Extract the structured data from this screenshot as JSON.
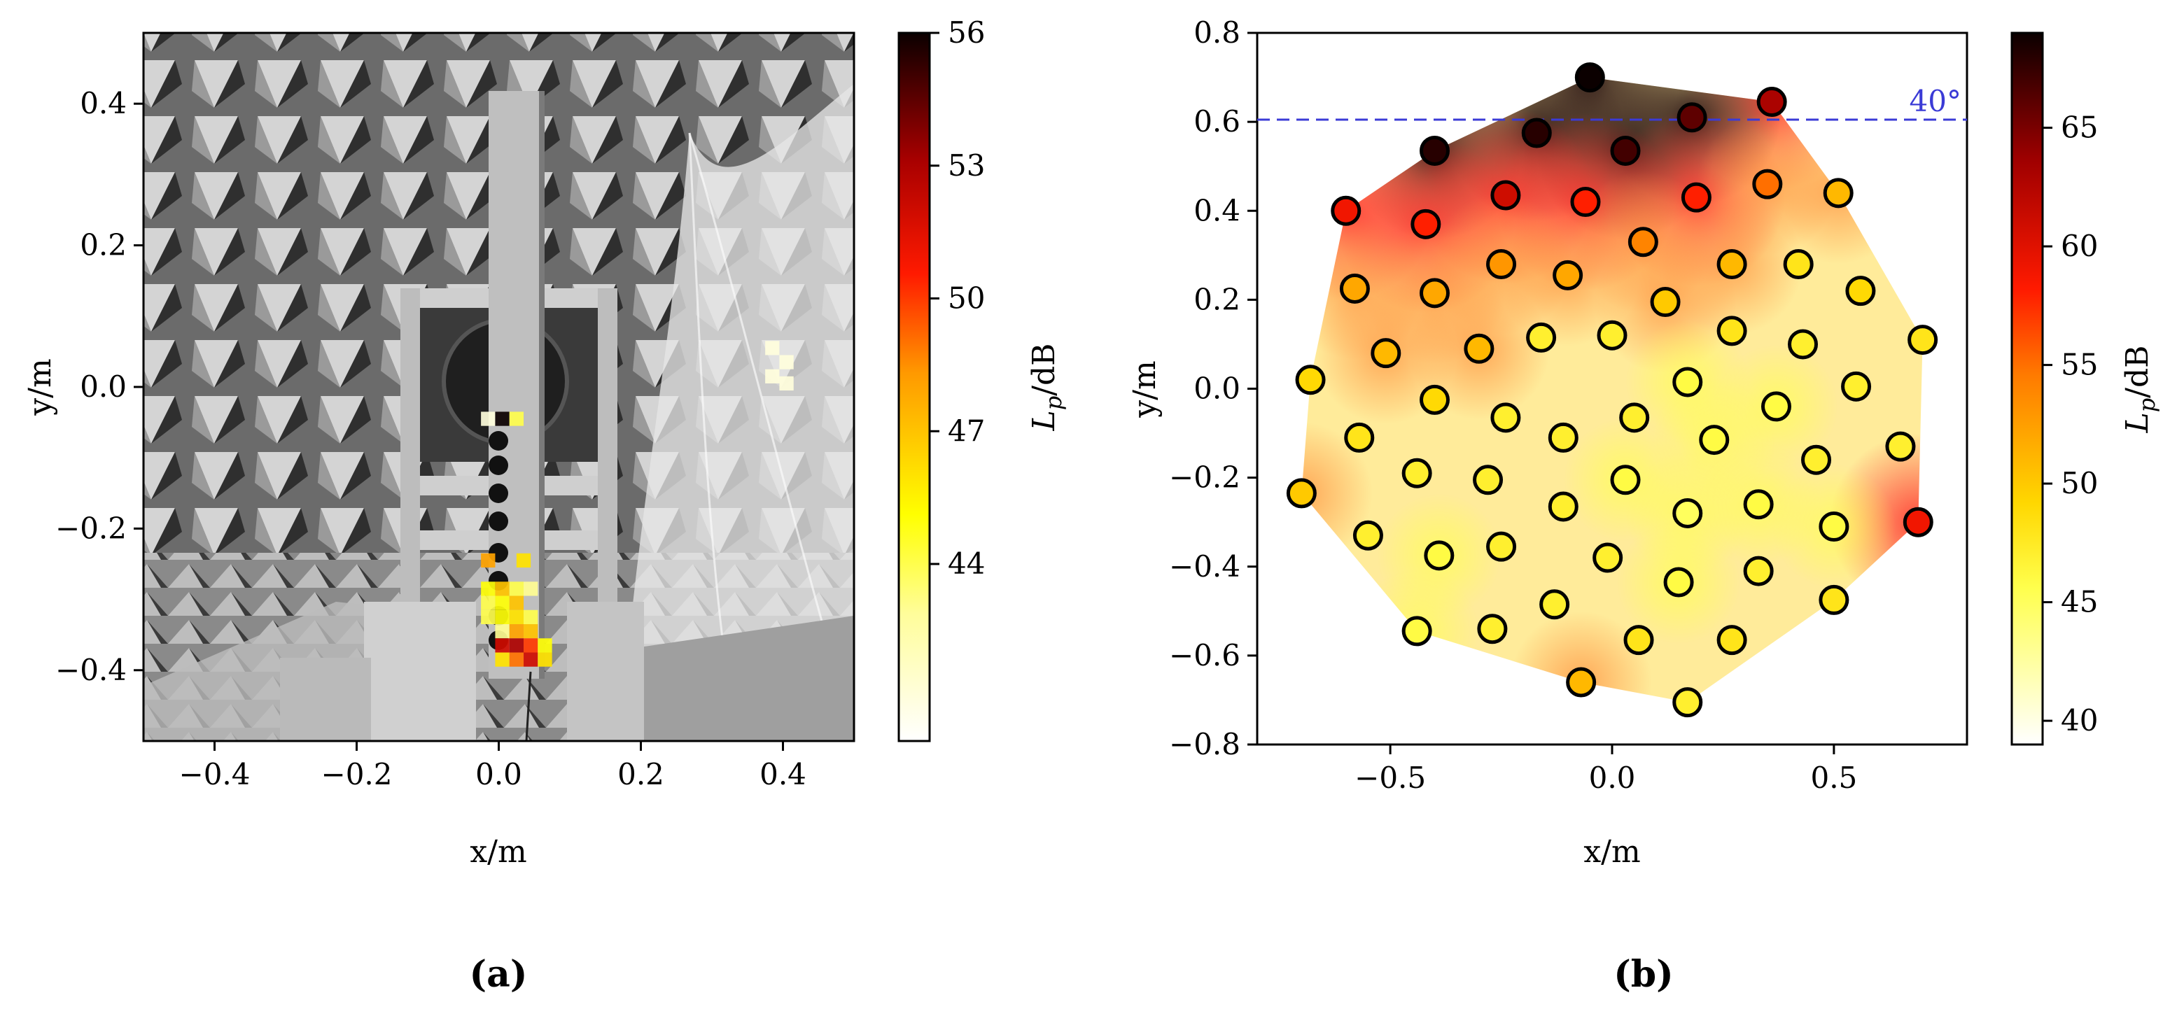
{
  "panels": [
    {
      "caption": "(a)",
      "chart_data": {
        "type": "heatmap",
        "background": "grayscale photograph of array (anechoic chamber)",
        "xlabel": "x/m",
        "ylabel": "y/m",
        "xlim": [
          -0.5,
          0.5
        ],
        "ylim": [
          -0.5,
          0.5
        ],
        "xticks": [
          -0.4,
          -0.2,
          0.0,
          0.2,
          0.4
        ],
        "yticks": [
          -0.4,
          -0.2,
          0.0,
          0.2,
          0.4
        ],
        "xtick_labels": [
          "−0.4",
          "−0.2",
          "0.0",
          "0.2",
          "0.4"
        ],
        "ytick_labels": [
          "−0.4",
          "−0.2",
          "0.0",
          "0.2",
          "0.4"
        ],
        "colorbar": {
          "label": "L_p/dB",
          "min": 40,
          "max": 56,
          "ticks": [
            44,
            47,
            50,
            53,
            56
          ],
          "tick_labels": [
            "44",
            "47",
            "50",
            "53",
            "56"
          ],
          "colormap": "hot_r"
        },
        "cells": [
          {
            "x": -0.015,
            "y": -0.045,
            "v": 41
          },
          {
            "x": 0.005,
            "y": -0.045,
            "v": 56
          },
          {
            "x": 0.025,
            "y": -0.045,
            "v": 44
          },
          {
            "x": 0.035,
            "y": -0.245,
            "v": 46
          },
          {
            "x": -0.015,
            "y": -0.245,
            "v": 48
          },
          {
            "x": -0.015,
            "y": -0.285,
            "v": 45
          },
          {
            "x": 0.005,
            "y": -0.285,
            "v": 47
          },
          {
            "x": 0.025,
            "y": -0.285,
            "v": 44
          },
          {
            "x": 0.045,
            "y": -0.285,
            "v": 43
          },
          {
            "x": -0.015,
            "y": -0.305,
            "v": 44
          },
          {
            "x": 0.005,
            "y": -0.305,
            "v": 45
          },
          {
            "x": 0.025,
            "y": -0.305,
            "v": 47
          },
          {
            "x": -0.015,
            "y": -0.325,
            "v": 44
          },
          {
            "x": 0.005,
            "y": -0.325,
            "v": 45
          },
          {
            "x": 0.025,
            "y": -0.325,
            "v": 46
          },
          {
            "x": 0.045,
            "y": -0.325,
            "v": 44
          },
          {
            "x": 0.005,
            "y": -0.345,
            "v": 43
          },
          {
            "x": 0.025,
            "y": -0.345,
            "v": 48
          },
          {
            "x": 0.045,
            "y": -0.345,
            "v": 47
          },
          {
            "x": 0.005,
            "y": -0.365,
            "v": 52
          },
          {
            "x": 0.025,
            "y": -0.365,
            "v": 53
          },
          {
            "x": 0.045,
            "y": -0.365,
            "v": 50
          },
          {
            "x": 0.065,
            "y": -0.365,
            "v": 45
          },
          {
            "x": 0.005,
            "y": -0.385,
            "v": 46
          },
          {
            "x": 0.025,
            "y": -0.385,
            "v": 49
          },
          {
            "x": 0.045,
            "y": -0.385,
            "v": 52
          },
          {
            "x": 0.065,
            "y": -0.385,
            "v": 46
          },
          {
            "x": 0.385,
            "y": 0.055,
            "v": 41
          },
          {
            "x": 0.405,
            "y": 0.035,
            "v": 41
          },
          {
            "x": 0.385,
            "y": 0.015,
            "v": 41
          },
          {
            "x": 0.405,
            "y": 0.005,
            "v": 41
          }
        ]
      }
    },
    {
      "caption": "(b)",
      "chart_data": {
        "type": "scatter",
        "background": "interpolated sound pressure level map (hot_r)",
        "xlabel": "x/m",
        "ylabel": "y/m",
        "xlim": [
          -0.8,
          0.8
        ],
        "ylim": [
          -0.8,
          0.8
        ],
        "xticks": [
          -0.5,
          0.0,
          0.5
        ],
        "yticks": [
          -0.8,
          -0.6,
          -0.4,
          -0.2,
          0.0,
          0.2,
          0.4,
          0.6,
          0.8
        ],
        "xtick_labels": [
          "−0.5",
          "0.0",
          "0.5"
        ],
        "ytick_labels": [
          "−0.8",
          "−0.6",
          "−0.4",
          "−0.2",
          "0.0",
          "0.2",
          "0.4",
          "0.6",
          "0.8"
        ],
        "reference_line": {
          "y": 0.605,
          "label": "40°",
          "color": "#3b3bd6",
          "style": "dashed"
        },
        "colorbar": {
          "label": "L_p/dB",
          "min": 39,
          "max": 69,
          "ticks": [
            40,
            45,
            50,
            55,
            60,
            65
          ],
          "tick_labels": [
            "40",
            "45",
            "50",
            "55",
            "60",
            "65"
          ],
          "colormap": "hot_r"
        },
        "points": [
          {
            "x": -0.05,
            "y": 0.7,
            "v": 69
          },
          {
            "x": 0.36,
            "y": 0.645,
            "v": 63
          },
          {
            "x": 0.18,
            "y": 0.61,
            "v": 66
          },
          {
            "x": -0.17,
            "y": 0.575,
            "v": 68
          },
          {
            "x": -0.4,
            "y": 0.535,
            "v": 68
          },
          {
            "x": 0.03,
            "y": 0.535,
            "v": 67
          },
          {
            "x": -0.6,
            "y": 0.4,
            "v": 59
          },
          {
            "x": -0.42,
            "y": 0.37,
            "v": 58
          },
          {
            "x": -0.24,
            "y": 0.435,
            "v": 61
          },
          {
            "x": -0.06,
            "y": 0.42,
            "v": 58
          },
          {
            "x": 0.19,
            "y": 0.43,
            "v": 58
          },
          {
            "x": 0.35,
            "y": 0.46,
            "v": 55
          },
          {
            "x": 0.51,
            "y": 0.44,
            "v": 51
          },
          {
            "x": 0.07,
            "y": 0.33,
            "v": 54
          },
          {
            "x": -0.58,
            "y": 0.225,
            "v": 52
          },
          {
            "x": -0.4,
            "y": 0.215,
            "v": 52
          },
          {
            "x": -0.25,
            "y": 0.28,
            "v": 53
          },
          {
            "x": -0.1,
            "y": 0.255,
            "v": 52
          },
          {
            "x": 0.12,
            "y": 0.195,
            "v": 50
          },
          {
            "x": 0.27,
            "y": 0.28,
            "v": 51
          },
          {
            "x": 0.42,
            "y": 0.28,
            "v": 48
          },
          {
            "x": 0.56,
            "y": 0.22,
            "v": 49
          },
          {
            "x": -0.51,
            "y": 0.08,
            "v": 51
          },
          {
            "x": -0.3,
            "y": 0.09,
            "v": 51
          },
          {
            "x": -0.16,
            "y": 0.115,
            "v": 47
          },
          {
            "x": 0.0,
            "y": 0.12,
            "v": 47
          },
          {
            "x": 0.27,
            "y": 0.13,
            "v": 48
          },
          {
            "x": 0.43,
            "y": 0.1,
            "v": 47
          },
          {
            "x": 0.7,
            "y": 0.11,
            "v": 48
          },
          {
            "x": -0.68,
            "y": 0.02,
            "v": 49
          },
          {
            "x": -0.4,
            "y": -0.025,
            "v": 49
          },
          {
            "x": -0.24,
            "y": -0.065,
            "v": 47
          },
          {
            "x": 0.05,
            "y": -0.065,
            "v": 47
          },
          {
            "x": 0.17,
            "y": 0.015,
            "v": 46
          },
          {
            "x": 0.55,
            "y": 0.005,
            "v": 47
          },
          {
            "x": 0.37,
            "y": -0.04,
            "v": 46
          },
          {
            "x": -0.57,
            "y": -0.11,
            "v": 48
          },
          {
            "x": -0.11,
            "y": -0.11,
            "v": 47
          },
          {
            "x": 0.23,
            "y": -0.115,
            "v": 46
          },
          {
            "x": 0.46,
            "y": -0.16,
            "v": 47
          },
          {
            "x": 0.65,
            "y": -0.13,
            "v": 47
          },
          {
            "x": -0.7,
            "y": -0.235,
            "v": 50
          },
          {
            "x": -0.44,
            "y": -0.19,
            "v": 47
          },
          {
            "x": -0.28,
            "y": -0.205,
            "v": 47
          },
          {
            "x": 0.03,
            "y": -0.205,
            "v": 46
          },
          {
            "x": -0.11,
            "y": -0.265,
            "v": 47
          },
          {
            "x": 0.17,
            "y": -0.28,
            "v": 45
          },
          {
            "x": 0.33,
            "y": -0.26,
            "v": 46
          },
          {
            "x": 0.69,
            "y": -0.3,
            "v": 59
          },
          {
            "x": -0.55,
            "y": -0.33,
            "v": 47
          },
          {
            "x": -0.39,
            "y": -0.375,
            "v": 46
          },
          {
            "x": -0.25,
            "y": -0.355,
            "v": 47
          },
          {
            "x": -0.01,
            "y": -0.38,
            "v": 47
          },
          {
            "x": 0.5,
            "y": -0.31,
            "v": 46
          },
          {
            "x": 0.33,
            "y": -0.41,
            "v": 47
          },
          {
            "x": 0.15,
            "y": -0.435,
            "v": 46
          },
          {
            "x": -0.13,
            "y": -0.485,
            "v": 47
          },
          {
            "x": 0.5,
            "y": -0.475,
            "v": 48
          },
          {
            "x": -0.44,
            "y": -0.545,
            "v": 46
          },
          {
            "x": -0.27,
            "y": -0.54,
            "v": 47
          },
          {
            "x": 0.06,
            "y": -0.565,
            "v": 48
          },
          {
            "x": 0.27,
            "y": -0.565,
            "v": 48
          },
          {
            "x": -0.07,
            "y": -0.66,
            "v": 51
          },
          {
            "x": 0.17,
            "y": -0.705,
            "v": 47
          }
        ]
      }
    }
  ]
}
